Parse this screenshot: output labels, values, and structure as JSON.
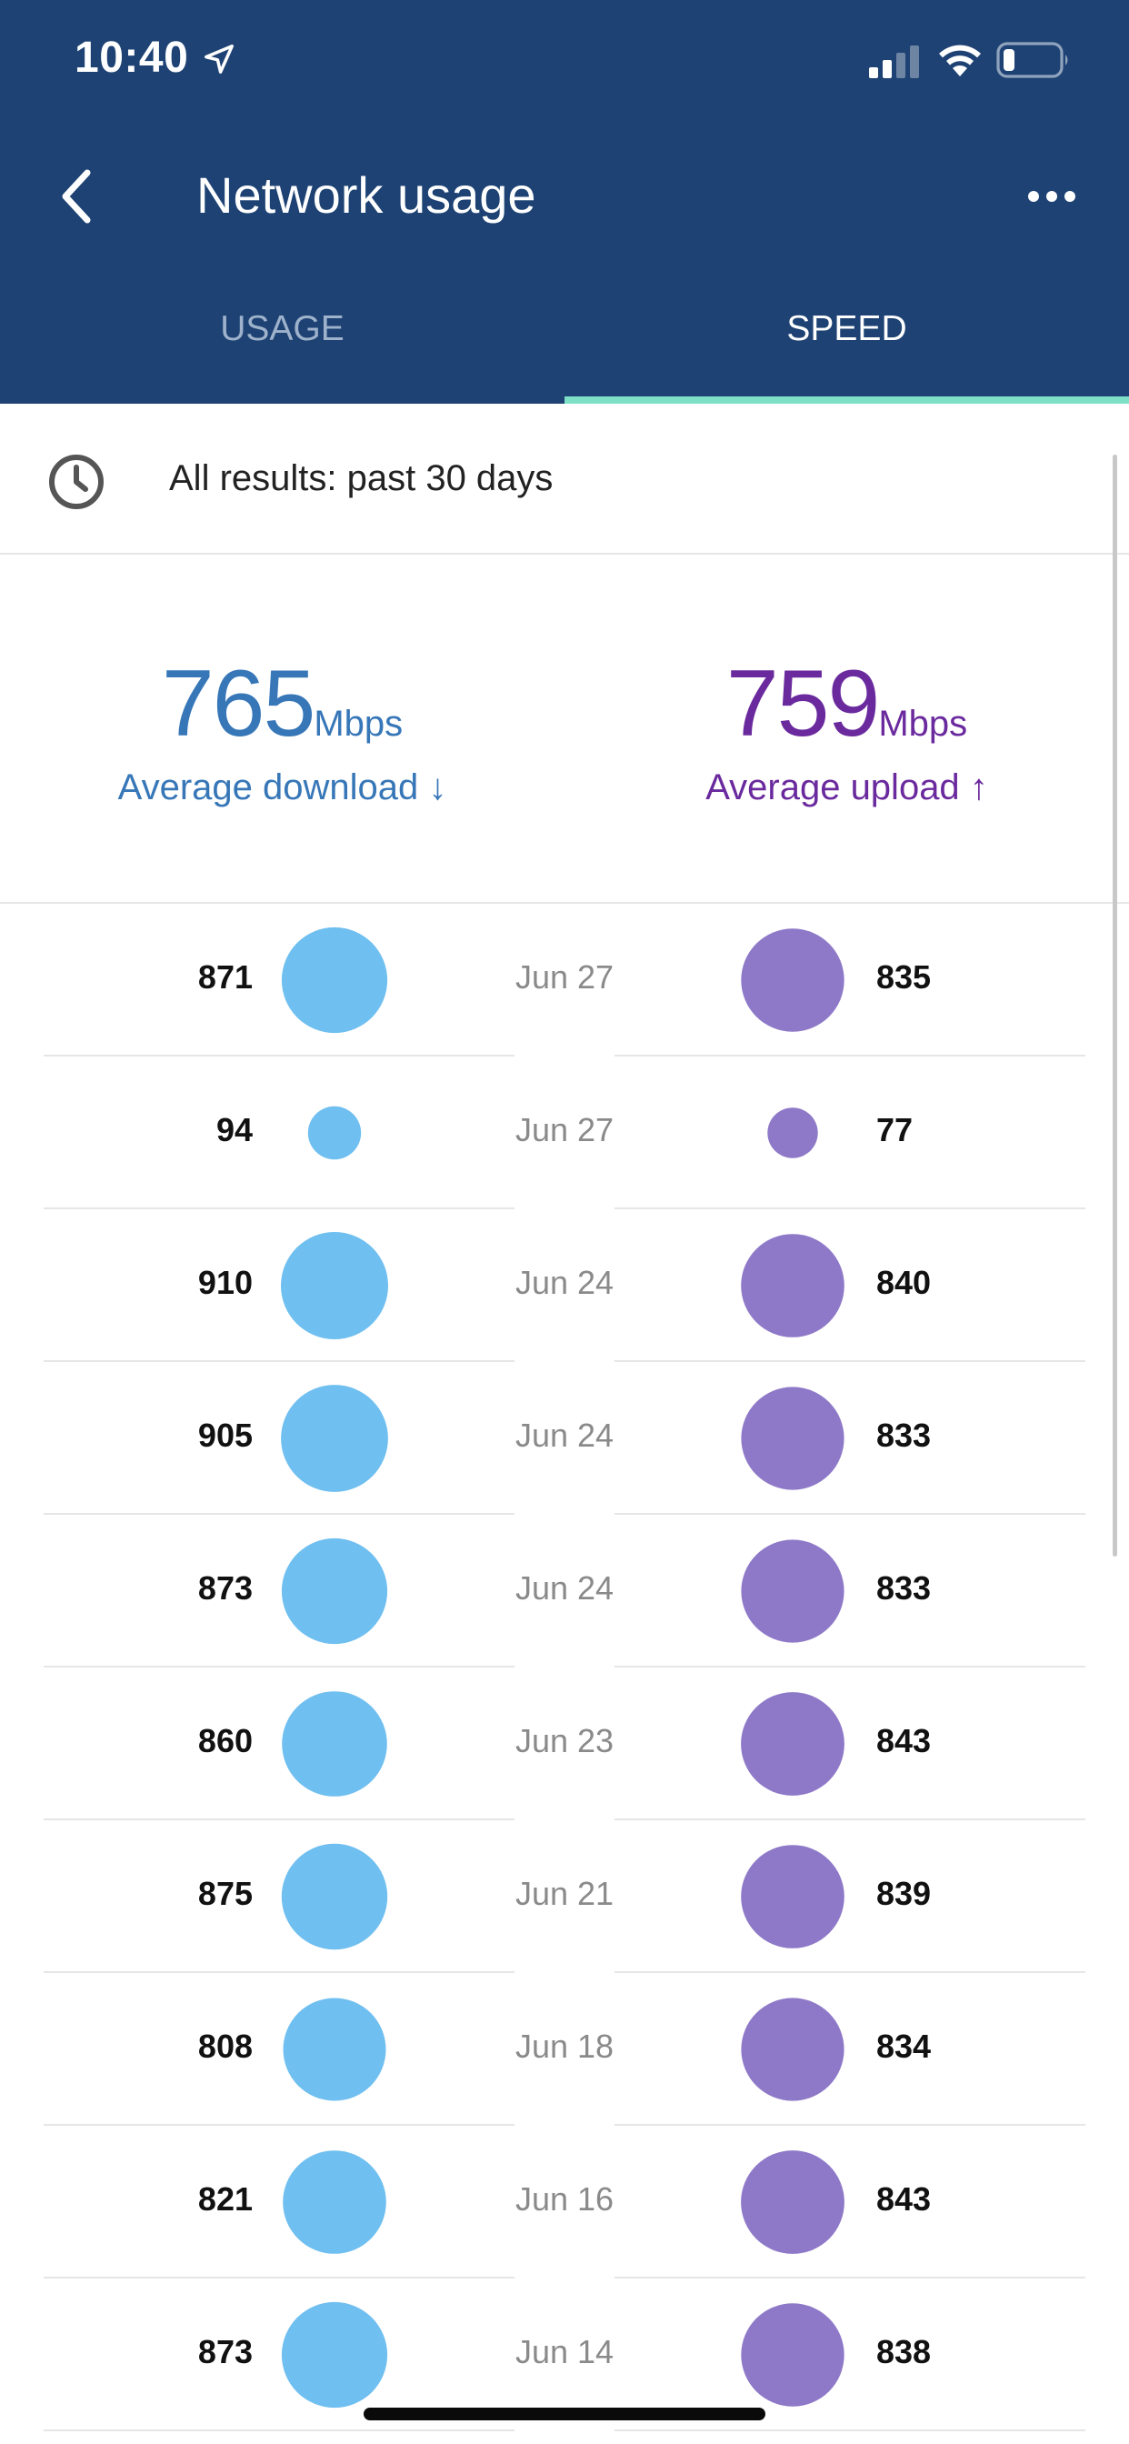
{
  "status_bar": {
    "time": "10:40"
  },
  "header": {
    "title": "Network usage"
  },
  "tabs": [
    {
      "label": "USAGE",
      "active": false
    },
    {
      "label": "SPEED",
      "active": true
    }
  ],
  "filter": {
    "label": "All results: past 30 days"
  },
  "averages": {
    "download": {
      "value": "765",
      "unit": "Mbps",
      "label": "Average download ↓"
    },
    "upload": {
      "value": "759",
      "unit": "Mbps",
      "label": "Average upload ↑"
    }
  },
  "colors": {
    "header": "#1d4273",
    "download": "#6fbff0",
    "upload": "#8e79c8",
    "tab_indicator": "#7fe0c8"
  },
  "results": [
    {
      "download": 871,
      "date": "Jun 27",
      "upload": 835
    },
    {
      "download": 94,
      "date": "Jun 27",
      "upload": 77
    },
    {
      "download": 910,
      "date": "Jun 24",
      "upload": 840
    },
    {
      "download": 905,
      "date": "Jun 24",
      "upload": 833
    },
    {
      "download": 873,
      "date": "Jun 24",
      "upload": 833
    },
    {
      "download": 860,
      "date": "Jun 23",
      "upload": 843
    },
    {
      "download": 875,
      "date": "Jun 21",
      "upload": 839
    },
    {
      "download": 808,
      "date": "Jun 18",
      "upload": 834
    },
    {
      "download": 821,
      "date": "Jun 16",
      "upload": 843
    },
    {
      "download": 873,
      "date": "Jun 14",
      "upload": 838
    }
  ]
}
